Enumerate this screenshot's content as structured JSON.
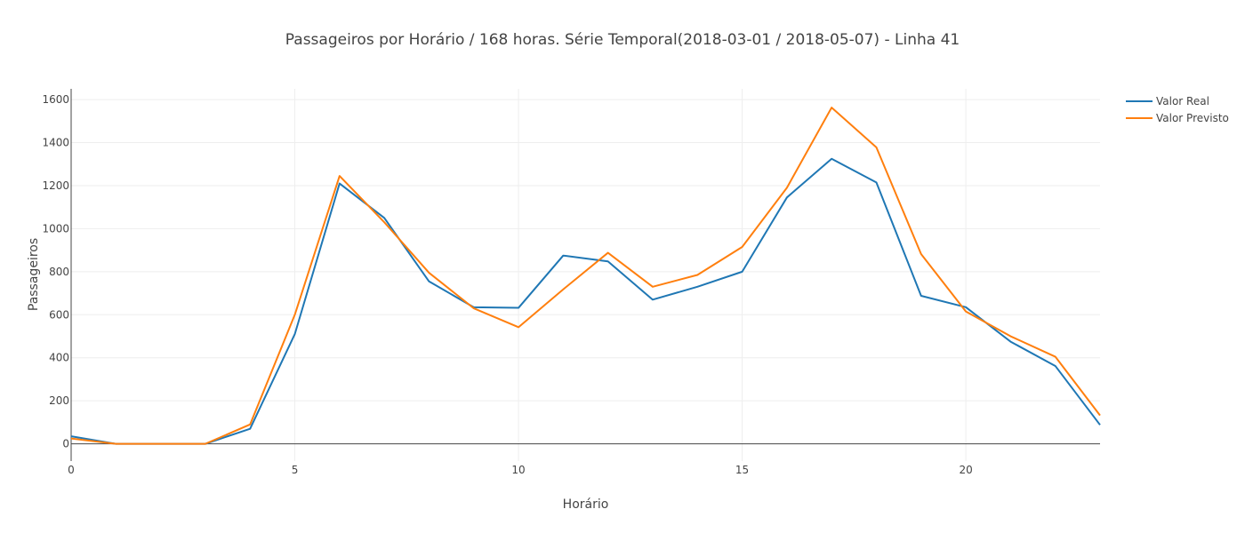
{
  "chart_data": {
    "type": "line",
    "title": "Passageiros por Horário / 168 horas. Série Temporal(2018-03-01 / 2018-05-07) - Linha 41",
    "xlabel": "Horário",
    "ylabel": "Passageiros",
    "xlim": [
      0,
      23
    ],
    "ylim": [
      -80,
      1650
    ],
    "x_ticks": [
      0,
      5,
      10,
      15,
      20
    ],
    "y_ticks": [
      0,
      200,
      400,
      600,
      800,
      1000,
      1200,
      1400,
      1600
    ],
    "grid": true,
    "legend_position": "top-right",
    "x": [
      0,
      1,
      2,
      3,
      4,
      5,
      6,
      7,
      8,
      9,
      10,
      11,
      12,
      13,
      14,
      15,
      16,
      17,
      18,
      19,
      20,
      21,
      22,
      23
    ],
    "series": [
      {
        "name": "Valor Real",
        "color": "#1f77b4",
        "values": [
          35,
          0,
          0,
          0,
          70,
          510,
          1210,
          1050,
          755,
          635,
          632,
          875,
          848,
          670,
          730,
          800,
          1145,
          1325,
          1215,
          688,
          635,
          475,
          362,
          88
        ]
      },
      {
        "name": "Valor Previsto",
        "color": "#ff7f0e",
        "values": [
          25,
          0,
          0,
          0,
          90,
          600,
          1245,
          1030,
          795,
          630,
          542,
          718,
          888,
          730,
          785,
          915,
          1190,
          1563,
          1378,
          882,
          615,
          500,
          405,
          132
        ]
      }
    ]
  }
}
